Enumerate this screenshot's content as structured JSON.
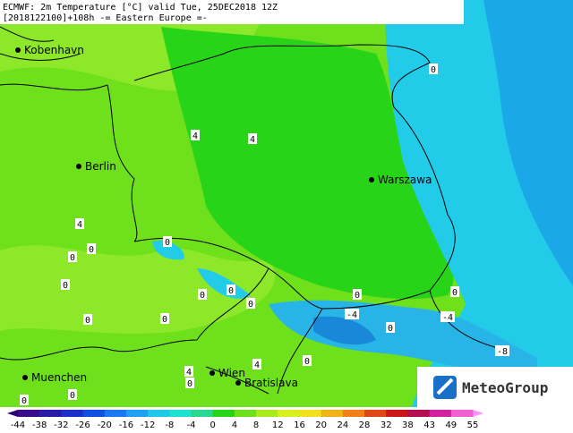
{
  "header": {
    "line1": "ECMWF: 2m Temperature [°C] valid Tue, 25DEC2018 12Z",
    "line2": "[2018122100]+108h  -= Eastern Europe =-"
  },
  "cities": [
    "Kobenhavn",
    "Berlin",
    "Warszawa",
    "Muenchen",
    "Wien",
    "Bratislava"
  ],
  "contour_labels": [
    0,
    4,
    4,
    4,
    0,
    0,
    0,
    0,
    0,
    0,
    0,
    0,
    0,
    0,
    0,
    -4,
    -4,
    0,
    -8,
    4,
    4,
    0,
    0,
    0,
    0
  ],
  "colorbar": [
    -44,
    -38,
    -32,
    -26,
    -20,
    -16,
    -12,
    -8,
    -4,
    0,
    4,
    8,
    12,
    16,
    20,
    24,
    28,
    32,
    38,
    43,
    49,
    55
  ],
  "logo": "MeteoGroup"
}
